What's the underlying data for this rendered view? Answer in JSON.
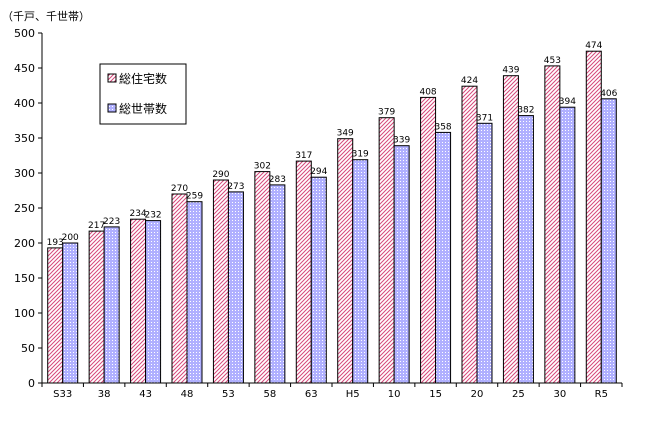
{
  "chart_data": {
    "type": "bar",
    "unit_label": "（千戸、千世帯）",
    "categories": [
      "S33",
      "38",
      "43",
      "48",
      "53",
      "58",
      "63",
      "H5",
      "10",
      "15",
      "20",
      "25",
      "30",
      "R5"
    ],
    "series": [
      {
        "name": "総住宅数",
        "values": [
          193,
          217,
          234,
          270,
          290,
          302,
          317,
          349,
          379,
          408,
          424,
          439,
          453,
          474
        ],
        "fill_color": "#ffffff",
        "hatch_color": "#d6487a"
      },
      {
        "name": "総世帯数",
        "values": [
          200,
          223,
          232,
          259,
          273,
          283,
          294,
          319,
          339,
          358,
          371,
          382,
          394,
          406
        ],
        "fill_color": "#b0b0ff",
        "hatch_color": "#ffffff"
      }
    ],
    "ylim": [
      0,
      500
    ],
    "y_ticks": [
      0,
      50,
      100,
      150,
      200,
      250,
      300,
      350,
      400,
      450,
      500
    ],
    "grid": false,
    "legend_position": "top-left"
  }
}
